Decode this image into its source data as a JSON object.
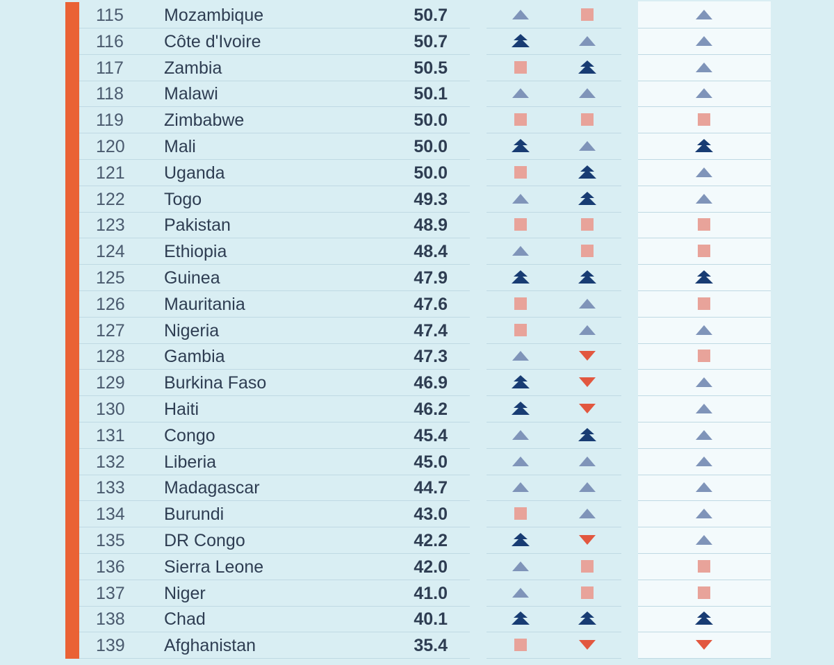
{
  "colors": {
    "background": "#d9eef3",
    "trend_column_bg": "#f3fafc",
    "rank_bar": "#ea6235",
    "up": "#7f94b9",
    "strong_up": "#183c73",
    "stable": "#e8a39a",
    "down": "#e2573f"
  },
  "rows": [
    {
      "rank": "115",
      "country": "Mozambique",
      "score": "50.7",
      "trends": [
        "up",
        "stable",
        "up"
      ]
    },
    {
      "rank": "116",
      "country": "Côte d'Ivoire",
      "score": "50.7",
      "trends": [
        "strong_up",
        "up",
        "up"
      ]
    },
    {
      "rank": "117",
      "country": "Zambia",
      "score": "50.5",
      "trends": [
        "stable",
        "strong_up",
        "up"
      ]
    },
    {
      "rank": "118",
      "country": "Malawi",
      "score": "50.1",
      "trends": [
        "up",
        "up",
        "up"
      ]
    },
    {
      "rank": "119",
      "country": "Zimbabwe",
      "score": "50.0",
      "trends": [
        "stable",
        "stable",
        "stable"
      ]
    },
    {
      "rank": "120",
      "country": "Mali",
      "score": "50.0",
      "trends": [
        "strong_up",
        "up",
        "strong_up"
      ]
    },
    {
      "rank": "121",
      "country": "Uganda",
      "score": "50.0",
      "trends": [
        "stable",
        "strong_up",
        "up"
      ]
    },
    {
      "rank": "122",
      "country": "Togo",
      "score": "49.3",
      "trends": [
        "up",
        "strong_up",
        "up"
      ]
    },
    {
      "rank": "123",
      "country": "Pakistan",
      "score": "48.9",
      "trends": [
        "stable",
        "stable",
        "stable"
      ]
    },
    {
      "rank": "124",
      "country": "Ethiopia",
      "score": "48.4",
      "trends": [
        "up",
        "stable",
        "stable"
      ]
    },
    {
      "rank": "125",
      "country": "Guinea",
      "score": "47.9",
      "trends": [
        "strong_up",
        "strong_up",
        "strong_up"
      ]
    },
    {
      "rank": "126",
      "country": "Mauritania",
      "score": "47.6",
      "trends": [
        "stable",
        "up",
        "stable"
      ]
    },
    {
      "rank": "127",
      "country": "Nigeria",
      "score": "47.4",
      "trends": [
        "stable",
        "up",
        "up"
      ]
    },
    {
      "rank": "128",
      "country": "Gambia",
      "score": "47.3",
      "trends": [
        "up",
        "down",
        "stable"
      ]
    },
    {
      "rank": "129",
      "country": "Burkina Faso",
      "score": "46.9",
      "trends": [
        "strong_up",
        "down",
        "up"
      ]
    },
    {
      "rank": "130",
      "country": "Haiti",
      "score": "46.2",
      "trends": [
        "strong_up",
        "down",
        "up"
      ]
    },
    {
      "rank": "131",
      "country": "Congo",
      "score": "45.4",
      "trends": [
        "up",
        "strong_up",
        "up"
      ]
    },
    {
      "rank": "132",
      "country": "Liberia",
      "score": "45.0",
      "trends": [
        "up",
        "up",
        "up"
      ]
    },
    {
      "rank": "133",
      "country": "Madagascar",
      "score": "44.7",
      "trends": [
        "up",
        "up",
        "up"
      ]
    },
    {
      "rank": "134",
      "country": "Burundi",
      "score": "43.0",
      "trends": [
        "stable",
        "up",
        "up"
      ]
    },
    {
      "rank": "135",
      "country": "DR Congo",
      "score": "42.2",
      "trends": [
        "strong_up",
        "down",
        "up"
      ]
    },
    {
      "rank": "136",
      "country": "Sierra Leone",
      "score": "42.0",
      "trends": [
        "up",
        "stable",
        "stable"
      ]
    },
    {
      "rank": "137",
      "country": "Niger",
      "score": "41.0",
      "trends": [
        "up",
        "stable",
        "stable"
      ]
    },
    {
      "rank": "138",
      "country": "Chad",
      "score": "40.1",
      "trends": [
        "strong_up",
        "strong_up",
        "strong_up"
      ]
    },
    {
      "rank": "139",
      "country": "Afghanistan",
      "score": "35.4",
      "trends": [
        "stable",
        "down",
        "down"
      ]
    }
  ]
}
